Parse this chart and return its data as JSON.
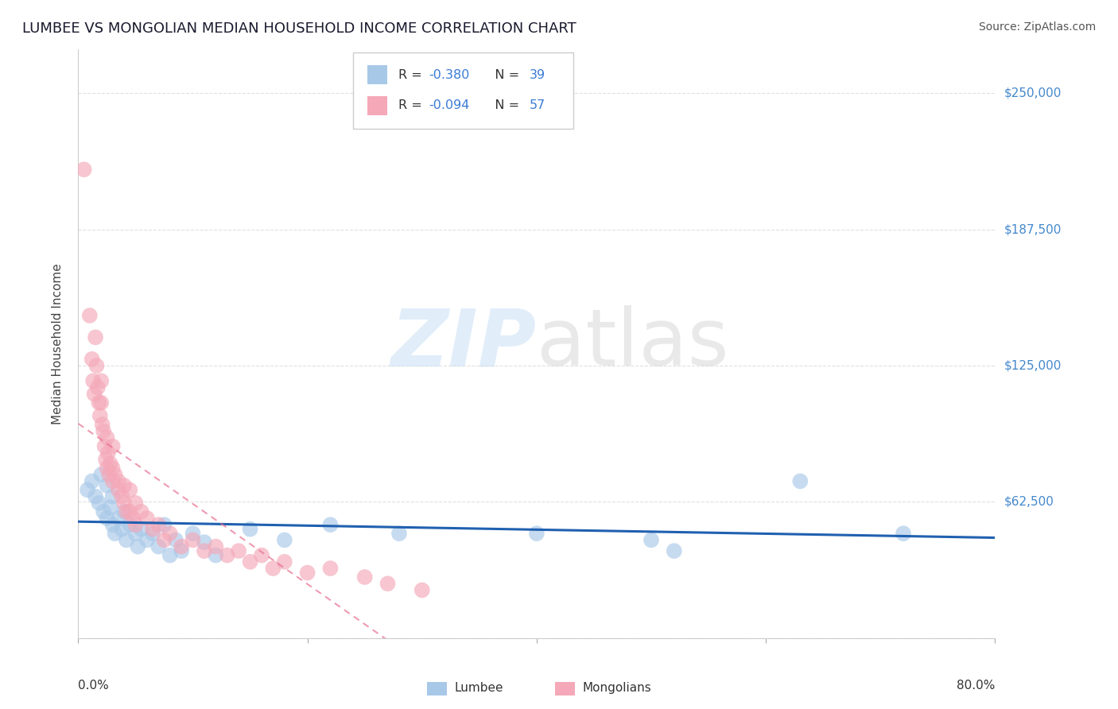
{
  "title": "LUMBEE VS MONGOLIAN MEDIAN HOUSEHOLD INCOME CORRELATION CHART",
  "source": "Source: ZipAtlas.com",
  "ylabel": "Median Household Income",
  "yticks": [
    0,
    62500,
    125000,
    187500,
    250000
  ],
  "ytick_labels": [
    "",
    "$62,500",
    "$125,000",
    "$187,500",
    "$250,000"
  ],
  "xlim": [
    0.0,
    0.8
  ],
  "ylim": [
    0,
    270000
  ],
  "lumbee_color": "#a8c8e8",
  "mongolian_color": "#f4a8b8",
  "lumbee_line_color": "#2060b0",
  "mongolian_line_color": "#e87090",
  "background_color": "#ffffff",
  "grid_color": "#cccccc",
  "title_color": "#1a1a2e",
  "source_color": "#555555",
  "axis_label_color": "#444444",
  "tick_color": "#4488cc",
  "lumbee_points": [
    [
      0.008,
      68000
    ],
    [
      0.012,
      72000
    ],
    [
      0.015,
      65000
    ],
    [
      0.018,
      62000
    ],
    [
      0.02,
      75000
    ],
    [
      0.022,
      58000
    ],
    [
      0.025,
      70000
    ],
    [
      0.025,
      55000
    ],
    [
      0.028,
      60000
    ],
    [
      0.03,
      52000
    ],
    [
      0.03,
      65000
    ],
    [
      0.032,
      48000
    ],
    [
      0.035,
      55000
    ],
    [
      0.038,
      50000
    ],
    [
      0.04,
      58000
    ],
    [
      0.042,
      45000
    ],
    [
      0.045,
      52000
    ],
    [
      0.05,
      48000
    ],
    [
      0.052,
      42000
    ],
    [
      0.055,
      50000
    ],
    [
      0.06,
      45000
    ],
    [
      0.065,
      48000
    ],
    [
      0.07,
      42000
    ],
    [
      0.075,
      52000
    ],
    [
      0.08,
      38000
    ],
    [
      0.085,
      45000
    ],
    [
      0.09,
      40000
    ],
    [
      0.1,
      48000
    ],
    [
      0.11,
      44000
    ],
    [
      0.12,
      38000
    ],
    [
      0.15,
      50000
    ],
    [
      0.18,
      45000
    ],
    [
      0.22,
      52000
    ],
    [
      0.28,
      48000
    ],
    [
      0.4,
      48000
    ],
    [
      0.5,
      45000
    ],
    [
      0.52,
      40000
    ],
    [
      0.63,
      72000
    ],
    [
      0.72,
      48000
    ]
  ],
  "mongolian_points": [
    [
      0.005,
      215000
    ],
    [
      0.01,
      148000
    ],
    [
      0.012,
      128000
    ],
    [
      0.013,
      118000
    ],
    [
      0.014,
      112000
    ],
    [
      0.015,
      138000
    ],
    [
      0.016,
      125000
    ],
    [
      0.017,
      115000
    ],
    [
      0.018,
      108000
    ],
    [
      0.019,
      102000
    ],
    [
      0.02,
      118000
    ],
    [
      0.02,
      108000
    ],
    [
      0.021,
      98000
    ],
    [
      0.022,
      95000
    ],
    [
      0.023,
      88000
    ],
    [
      0.024,
      82000
    ],
    [
      0.025,
      92000
    ],
    [
      0.025,
      78000
    ],
    [
      0.026,
      85000
    ],
    [
      0.027,
      75000
    ],
    [
      0.028,
      80000
    ],
    [
      0.03,
      88000
    ],
    [
      0.03,
      78000
    ],
    [
      0.03,
      72000
    ],
    [
      0.032,
      75000
    ],
    [
      0.035,
      68000
    ],
    [
      0.035,
      72000
    ],
    [
      0.038,
      65000
    ],
    [
      0.04,
      70000
    ],
    [
      0.04,
      62000
    ],
    [
      0.042,
      58000
    ],
    [
      0.045,
      68000
    ],
    [
      0.045,
      58000
    ],
    [
      0.048,
      55000
    ],
    [
      0.05,
      62000
    ],
    [
      0.05,
      52000
    ],
    [
      0.055,
      58000
    ],
    [
      0.06,
      55000
    ],
    [
      0.065,
      50000
    ],
    [
      0.07,
      52000
    ],
    [
      0.075,
      45000
    ],
    [
      0.08,
      48000
    ],
    [
      0.09,
      42000
    ],
    [
      0.1,
      45000
    ],
    [
      0.11,
      40000
    ],
    [
      0.12,
      42000
    ],
    [
      0.13,
      38000
    ],
    [
      0.14,
      40000
    ],
    [
      0.15,
      35000
    ],
    [
      0.16,
      38000
    ],
    [
      0.17,
      32000
    ],
    [
      0.18,
      35000
    ],
    [
      0.2,
      30000
    ],
    [
      0.22,
      32000
    ],
    [
      0.25,
      28000
    ],
    [
      0.27,
      25000
    ],
    [
      0.3,
      22000
    ]
  ]
}
